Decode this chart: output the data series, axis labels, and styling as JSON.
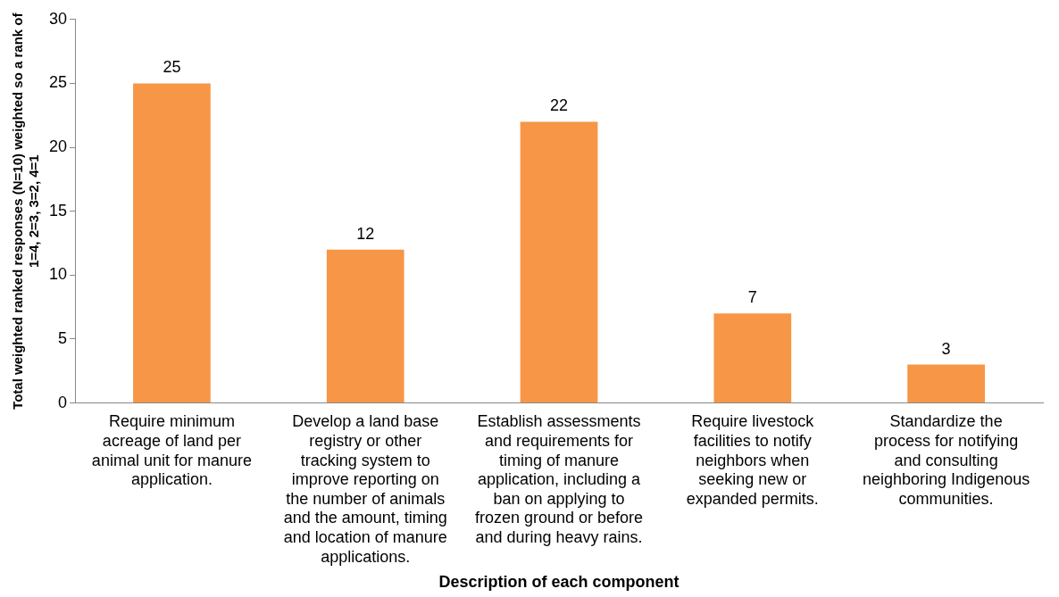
{
  "chart_data": {
    "type": "bar",
    "xlabel": "Description of each component",
    "ylabel": "Total weighted ranked responses (N=10) weighted so a rank of\n1=4, 2=3, 3=2, 4=1",
    "categories": [
      "Require minimum acreage of land per animal unit for manure application.",
      "Develop a land base registry or other tracking system to improve reporting on the number of animals and the amount, timing and location of manure applications.",
      "Establish assessments and requirements for timing of manure application, including a ban on applying to frozen ground or before and during heavy rains.",
      "Require livestock facilities to notify neighbors when seeking new or expanded permits.",
      "Standardize the process for notifying and consulting neighboring Indigenous communities."
    ],
    "values": [
      25,
      12,
      22,
      7,
      3
    ],
    "color": "#f79646",
    "ylim": [
      0,
      30
    ],
    "yticks": [
      0,
      5,
      10,
      15,
      20,
      25,
      30
    ],
    "grid": false,
    "legend": false,
    "data_labels": true
  }
}
